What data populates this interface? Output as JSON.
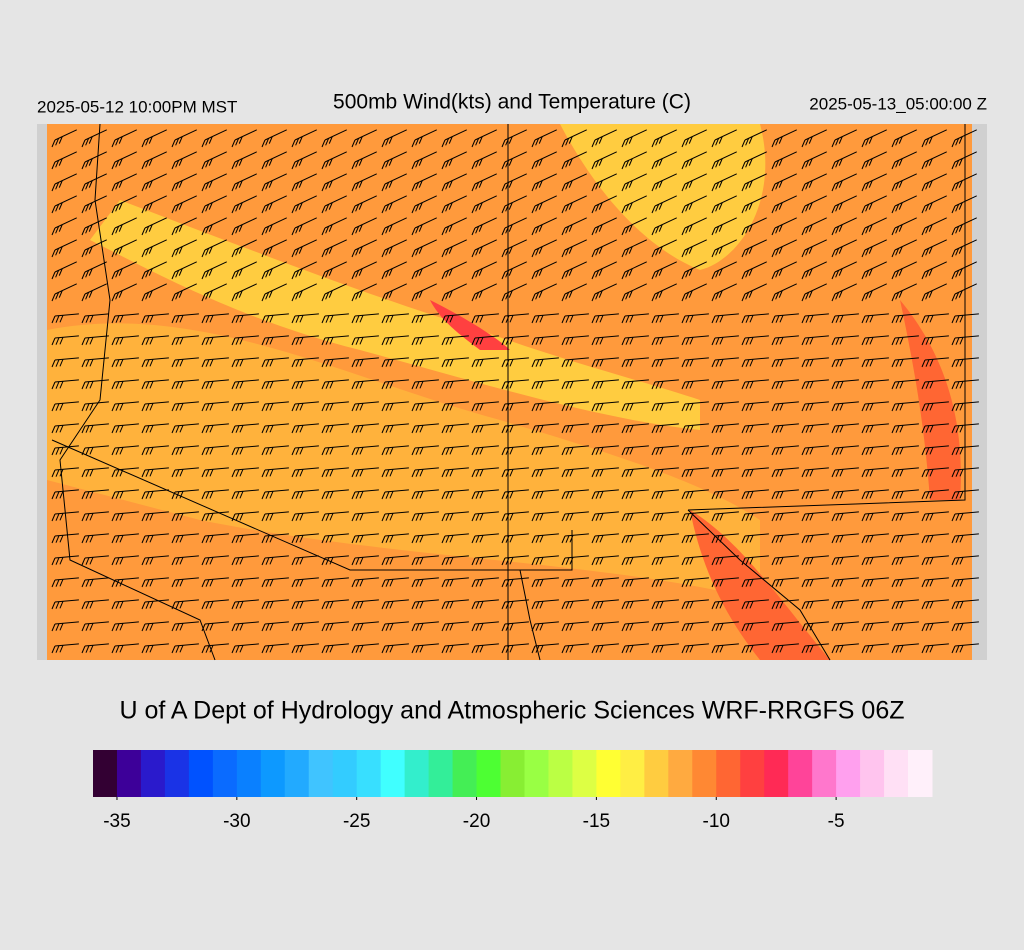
{
  "header": {
    "title": "500mb Wind(kts) and Temperature (C)",
    "local_time": "2025-05-12 10:00PM MST",
    "valid_time": "2025-05-13_05:00:00 Z"
  },
  "footer": {
    "credit": "U of A Dept of Hydrology and Atmospheric Sciences WRF-RRGFS 06Z"
  },
  "colorbar": {
    "range": [
      -36,
      -1
    ],
    "ticks": [
      -35,
      -30,
      -25,
      -20,
      -15,
      -10,
      -5
    ],
    "colors": [
      "#330033",
      "#3d0099",
      "#2a1acc",
      "#1a33e6",
      "#0052ff",
      "#0a6bff",
      "#0a80ff",
      "#0d99ff",
      "#22aaff",
      "#40c4ff",
      "#33ccff",
      "#38dfff",
      "#40ffff",
      "#33eecc",
      "#33ee99",
      "#44ee55",
      "#4dff33",
      "#88ee33",
      "#99ff44",
      "#bbff44",
      "#ddff44",
      "#ffff33",
      "#ffee44",
      "#ffcc40",
      "#ffaa40",
      "#ff8833",
      "#ff6633",
      "#ff4040",
      "#ff2a55",
      "#ff4499",
      "#ff77cc",
      "#ffa0ee",
      "#ffc4ee",
      "#ffe0f5",
      "#fff0fa"
    ]
  }
}
